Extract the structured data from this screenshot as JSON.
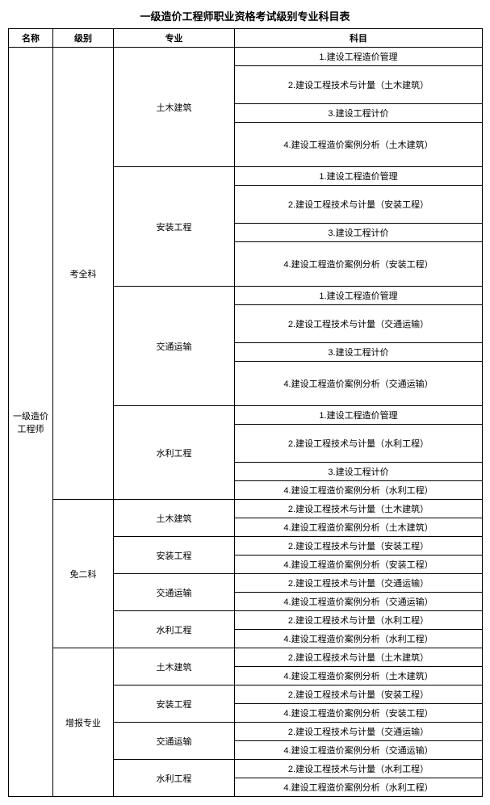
{
  "title": "一级造价工程师职业资格考试级别专业科目表",
  "headers": {
    "name": "名称",
    "level": "级别",
    "major": "专业",
    "subject": "科目"
  },
  "name": "一级造价工程师",
  "levels": {
    "full": "考全科",
    "exempt": "免二科",
    "add": "增报专业"
  },
  "majors": {
    "civil": "土木建筑",
    "install": "安装工程",
    "transport": "交通运输",
    "water": "水利工程"
  },
  "subj": {
    "s1": "1.建设工程造价管理",
    "s2_civil": "2.建设工程技术与计量（土木建筑）",
    "s2_install": "2.建设工程技术与计量（安装工程）",
    "s2_transport": "2.建设工程技术与计量（交通运输）",
    "s2_water": "2.建设工程技术与计量（水利工程）",
    "s3": "3.建设工程计价",
    "s4_civil": "4.建设工程造价案例分析（土木建筑）",
    "s4_install": "4.建设工程造价案例分析（安装工程）",
    "s4_transport": "4.建设工程造价案例分析（交通运输）",
    "s4_water": "4.建设工程造价案例分析（水利工程）"
  }
}
